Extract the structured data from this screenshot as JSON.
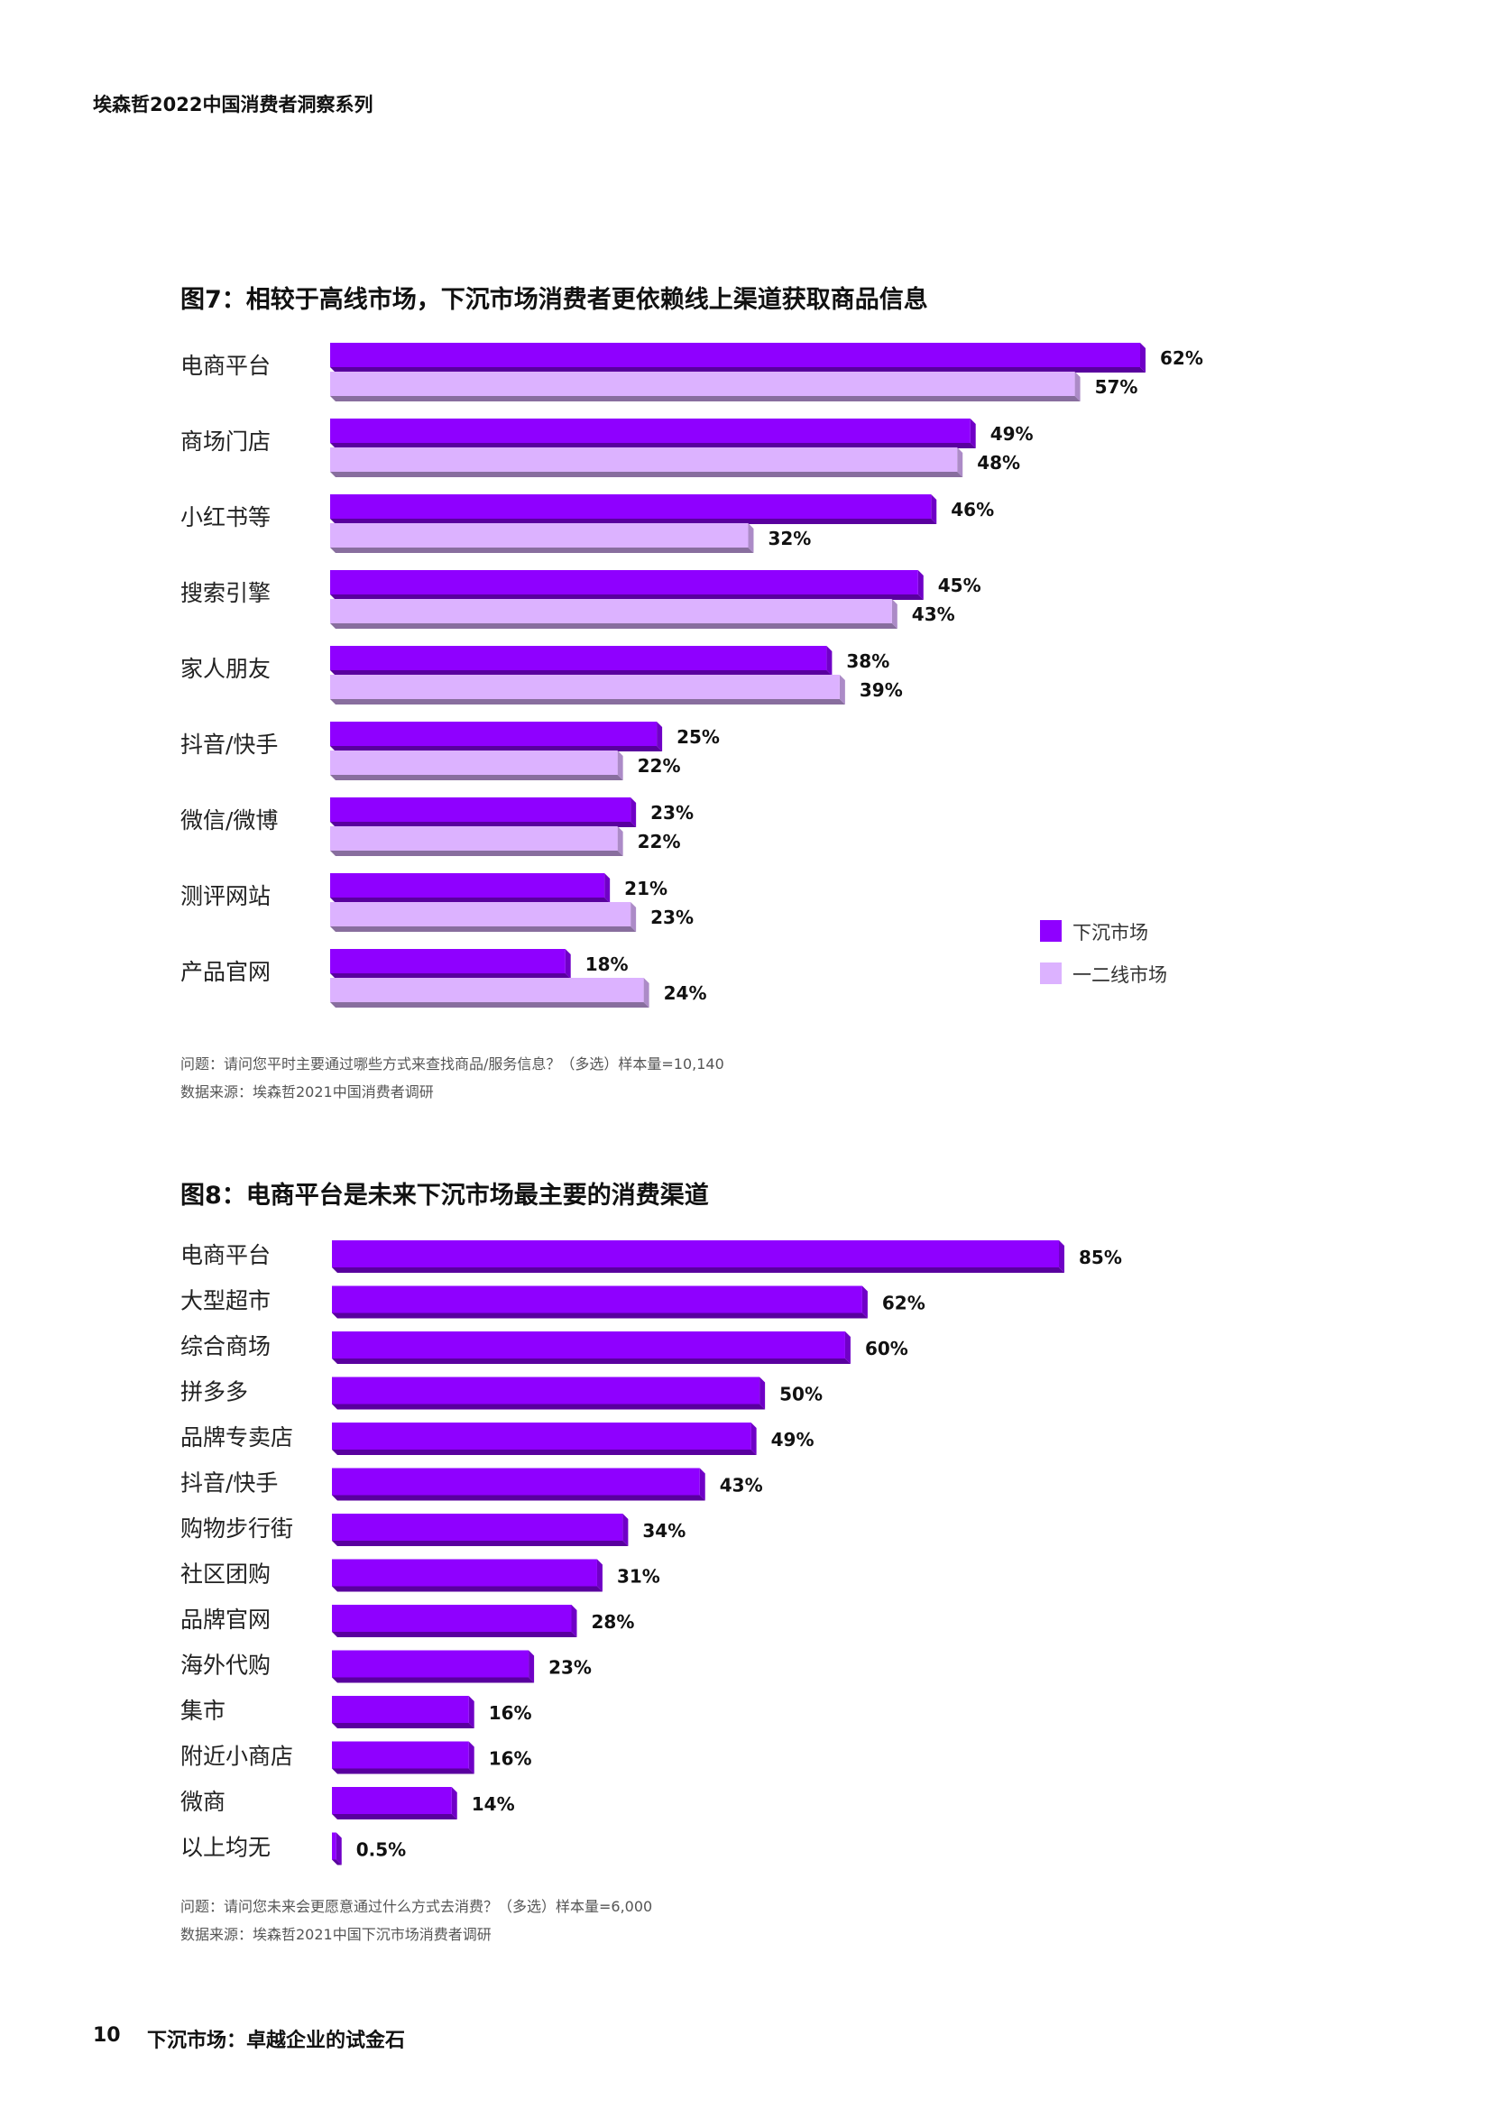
{
  "header": {
    "series_title": "埃森哲2022中国消费者洞察系列"
  },
  "footer": {
    "page_number": "10",
    "title": "下沉市场：卓越企业的试金石"
  },
  "colors": {
    "lower_tier": "#8f00ff",
    "tier12": "#dcb2ff"
  },
  "figure7": {
    "title": "图7：相较于高线市场，下沉市场消费者更依赖线上渠道获取商品信息",
    "question": "问题：请问您平时主要通过哪些方式来查找商品/服务信息？（多选）样本量=10,140",
    "source": "数据来源：埃森哲2021中国消费者调研"
  },
  "figure8": {
    "title": "图8：电商平台是未来下沉市场最主要的消费渠道",
    "question": "问题：请问您未来会更愿意通过什么方式去消费？（多选）样本量=6,000",
    "source": "数据来源：埃森哲2021中国下沉市场消费者调研"
  },
  "chart_data": [
    {
      "type": "bar",
      "orientation": "horizontal",
      "categories": [
        "电商平台",
        "商场门店",
        "小红书等",
        "搜索引擎",
        "家人朋友",
        "抖音/快手",
        "微信/微博",
        "测评网站",
        "产品官网"
      ],
      "series": [
        {
          "name": "下沉市场",
          "values": [
            62,
            49,
            46,
            45,
            38,
            25,
            23,
            21,
            18
          ],
          "labels": [
            "62%",
            "49%",
            "46%",
            "45%",
            "38%",
            "25%",
            "23%",
            "21%",
            "18%"
          ]
        },
        {
          "name": "一二线市场",
          "values": [
            57,
            48,
            32,
            43,
            39,
            22,
            22,
            23,
            24
          ],
          "labels": [
            "57%",
            "48%",
            "32%",
            "43%",
            "39%",
            "22%",
            "22%",
            "23%",
            "24%"
          ]
        }
      ],
      "xlim": [
        0,
        62
      ],
      "legend": "right"
    },
    {
      "type": "bar",
      "orientation": "horizontal",
      "categories": [
        "电商平台",
        "大型超市",
        "综合商场",
        "拼多多",
        "品牌专卖店",
        "抖音/快手",
        "购物步行街",
        "社区团购",
        "品牌官网",
        "海外代购",
        "集市",
        "附近小商店",
        "微商",
        "以上均无"
      ],
      "values": [
        85,
        62,
        60,
        50,
        49,
        43,
        34,
        31,
        28,
        23,
        16,
        16,
        14,
        0.5
      ],
      "labels": [
        "85%",
        "62%",
        "60%",
        "50%",
        "49%",
        "43%",
        "34%",
        "31%",
        "28%",
        "23%",
        "16%",
        "16%",
        "14%",
        "0.5%"
      ],
      "xlim": [
        0,
        85
      ]
    }
  ]
}
